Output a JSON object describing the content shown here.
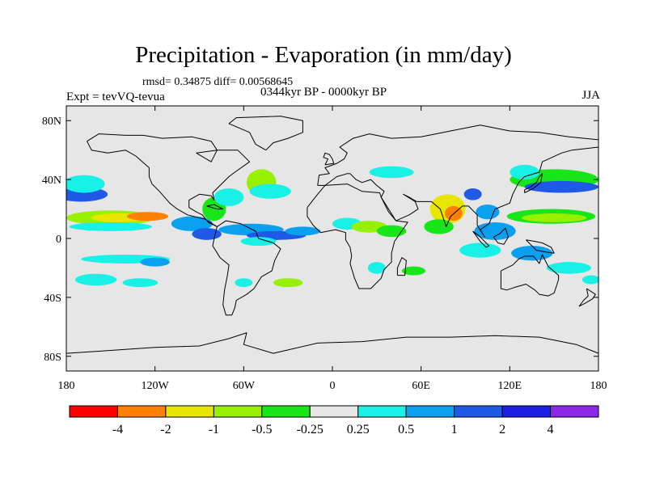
{
  "title": "Precipitation - Evaporation (in mm/day)",
  "stats": "rmsd= 0.34875  diff= 0.00568645",
  "expt": "Expt = tevVQ-tevua",
  "period": "0344kyr BP - 0000kyr BP",
  "season": "JJA",
  "map": {
    "lon_ticks": [
      {
        "value": -180,
        "label": "180"
      },
      {
        "value": -120,
        "label": "120W"
      },
      {
        "value": -60,
        "label": "60W"
      },
      {
        "value": 0,
        "label": "0"
      },
      {
        "value": 60,
        "label": "60E"
      },
      {
        "value": 120,
        "label": "120E"
      },
      {
        "value": 180,
        "label": "180"
      }
    ],
    "lat_ticks": [
      {
        "value": 80,
        "label": "80N"
      },
      {
        "value": 40,
        "label": "40N"
      },
      {
        "value": 0,
        "label": "0"
      },
      {
        "value": -40,
        "label": "40S"
      },
      {
        "value": -80,
        "label": "80S"
      }
    ],
    "lon_range": [
      -180,
      180
    ],
    "lat_range": [
      -90,
      90
    ],
    "background_color": "#e6e6e6"
  },
  "colorbar": {
    "colors": [
      "#ff0000",
      "#ff7f00",
      "#e8e600",
      "#96f000",
      "#19e619",
      "#e6e6e6",
      "#19f0e6",
      "#0aa0f0",
      "#1e5ae6",
      "#1e1ee6",
      "#8c28e6"
    ],
    "labels": [
      "-4",
      "-2",
      "-1",
      "-0.5",
      "-0.25",
      "0.25",
      "0.5",
      "1",
      "2",
      "4"
    ]
  },
  "anomaly_patches": [
    {
      "lon": -170,
      "lat": 30,
      "rx": 18,
      "ry": 5,
      "color": "#1e5ae6"
    },
    {
      "lon": -168,
      "lat": 37,
      "rx": 14,
      "ry": 6,
      "color": "#19f0e6"
    },
    {
      "lon": -150,
      "lat": 14,
      "rx": 30,
      "ry": 5,
      "color": "#96f000"
    },
    {
      "lon": -145,
      "lat": 14,
      "rx": 18,
      "ry": 3,
      "color": "#e8e600"
    },
    {
      "lon": -125,
      "lat": 15,
      "rx": 14,
      "ry": 3,
      "color": "#ff7f00"
    },
    {
      "lon": -150,
      "lat": 8,
      "rx": 28,
      "ry": 3,
      "color": "#19f0e6"
    },
    {
      "lon": -95,
      "lat": 10,
      "rx": 14,
      "ry": 5,
      "color": "#0aa0f0"
    },
    {
      "lon": -85,
      "lat": 3,
      "rx": 10,
      "ry": 4,
      "color": "#1e5ae6"
    },
    {
      "lon": -80,
      "lat": 20,
      "rx": 8,
      "ry": 8,
      "color": "#19e619"
    },
    {
      "lon": -70,
      "lat": 28,
      "rx": 10,
      "ry": 6,
      "color": "#19f0e6"
    },
    {
      "lon": -48,
      "lat": 38,
      "rx": 10,
      "ry": 9,
      "color": "#96f000"
    },
    {
      "lon": -42,
      "lat": 32,
      "rx": 14,
      "ry": 5,
      "color": "#19f0e6"
    },
    {
      "lon": -55,
      "lat": 6,
      "rx": 22,
      "ry": 4,
      "color": "#0aa0f0"
    },
    {
      "lon": -38,
      "lat": 2,
      "rx": 20,
      "ry": 3,
      "color": "#1e5ae6"
    },
    {
      "lon": -20,
      "lat": 5,
      "rx": 12,
      "ry": 3,
      "color": "#0aa0f0"
    },
    {
      "lon": -50,
      "lat": -2,
      "rx": 12,
      "ry": 3,
      "color": "#19f0e6"
    },
    {
      "lon": -140,
      "lat": -14,
      "rx": 30,
      "ry": 3,
      "color": "#19f0e6"
    },
    {
      "lon": -120,
      "lat": -16,
      "rx": 10,
      "ry": 3,
      "color": "#0aa0f0"
    },
    {
      "lon": -160,
      "lat": -28,
      "rx": 14,
      "ry": 4,
      "color": "#19f0e6"
    },
    {
      "lon": -130,
      "lat": -30,
      "rx": 12,
      "ry": 3,
      "color": "#19f0e6"
    },
    {
      "lon": -60,
      "lat": -30,
      "rx": 6,
      "ry": 3,
      "color": "#19f0e6"
    },
    {
      "lon": -30,
      "lat": -30,
      "rx": 10,
      "ry": 3,
      "color": "#96f000"
    },
    {
      "lon": 10,
      "lat": 10,
      "rx": 10,
      "ry": 4,
      "color": "#19f0e6"
    },
    {
      "lon": 25,
      "lat": 8,
      "rx": 12,
      "ry": 4,
      "color": "#96f000"
    },
    {
      "lon": 40,
      "lat": 5,
      "rx": 10,
      "ry": 4,
      "color": "#19e619"
    },
    {
      "lon": 30,
      "lat": -20,
      "rx": 6,
      "ry": 4,
      "color": "#19f0e6"
    },
    {
      "lon": 55,
      "lat": -22,
      "rx": 8,
      "ry": 3,
      "color": "#19e619"
    },
    {
      "lon": 40,
      "lat": 45,
      "rx": 15,
      "ry": 4,
      "color": "#19f0e6"
    },
    {
      "lon": 78,
      "lat": 20,
      "rx": 12,
      "ry": 10,
      "color": "#e8e600"
    },
    {
      "lon": 82,
      "lat": 17,
      "rx": 6,
      "ry": 5,
      "color": "#ff7f00"
    },
    {
      "lon": 72,
      "lat": 8,
      "rx": 10,
      "ry": 5,
      "color": "#19e619"
    },
    {
      "lon": 95,
      "lat": 30,
      "rx": 6,
      "ry": 4,
      "color": "#1e5ae6"
    },
    {
      "lon": 105,
      "lat": 18,
      "rx": 8,
      "ry": 5,
      "color": "#0aa0f0"
    },
    {
      "lon": 110,
      "lat": 5,
      "rx": 14,
      "ry": 6,
      "color": "#0aa0f0"
    },
    {
      "lon": 100,
      "lat": -8,
      "rx": 14,
      "ry": 5,
      "color": "#19f0e6"
    },
    {
      "lon": 150,
      "lat": 40,
      "rx": 30,
      "ry": 7,
      "color": "#19e619"
    },
    {
      "lon": 155,
      "lat": 35,
      "rx": 25,
      "ry": 4,
      "color": "#1e5ae6"
    },
    {
      "lon": 148,
      "lat": 15,
      "rx": 30,
      "ry": 5,
      "color": "#19e619"
    },
    {
      "lon": 150,
      "lat": 14,
      "rx": 22,
      "ry": 3,
      "color": "#96f000"
    },
    {
      "lon": 130,
      "lat": 45,
      "rx": 10,
      "ry": 5,
      "color": "#19f0e6"
    },
    {
      "lon": 135,
      "lat": -10,
      "rx": 14,
      "ry": 5,
      "color": "#0aa0f0"
    },
    {
      "lon": 160,
      "lat": -20,
      "rx": 15,
      "ry": 4,
      "color": "#19f0e6"
    },
    {
      "lon": 175,
      "lat": -28,
      "rx": 6,
      "ry": 3,
      "color": "#19f0e6"
    }
  ],
  "land_outlines": [
    {
      "name": "north-america",
      "points": [
        [
          -166,
          66
        ],
        [
          -158,
          71
        ],
        [
          -140,
          70
        ],
        [
          -128,
          70
        ],
        [
          -115,
          68
        ],
        [
          -95,
          69
        ],
        [
          -82,
          66
        ],
        [
          -78,
          60
        ],
        [
          -92,
          58
        ],
        [
          -82,
          52
        ],
        [
          -78,
          60
        ],
        [
          -64,
          60
        ],
        [
          -56,
          52
        ],
        [
          -66,
          45
        ],
        [
          -70,
          42
        ],
        [
          -76,
          36
        ],
        [
          -81,
          31
        ],
        [
          -80,
          26
        ],
        [
          -82,
          29
        ],
        [
          -90,
          30
        ],
        [
          -97,
          26
        ],
        [
          -97,
          21
        ],
        [
          -92,
          18
        ],
        [
          -88,
          16
        ],
        [
          -84,
          11
        ],
        [
          -78,
          8
        ],
        [
          -86,
          13
        ],
        [
          -98,
          16
        ],
        [
          -105,
          20
        ],
        [
          -110,
          24
        ],
        [
          -117,
          32
        ],
        [
          -122,
          37
        ],
        [
          -124,
          42
        ],
        [
          -124,
          48
        ],
        [
          -133,
          56
        ],
        [
          -140,
          60
        ],
        [
          -152,
          58
        ],
        [
          -163,
          60
        ],
        [
          -166,
          66
        ]
      ]
    },
    {
      "name": "greenland",
      "points": [
        [
          -45,
          60
        ],
        [
          -52,
          64
        ],
        [
          -56,
          72
        ],
        [
          -70,
          78
        ],
        [
          -65,
          82
        ],
        [
          -35,
          83
        ],
        [
          -20,
          80
        ],
        [
          -20,
          72
        ],
        [
          -30,
          68
        ],
        [
          -40,
          65
        ],
        [
          -45,
          60
        ]
      ]
    },
    {
      "name": "south-america",
      "points": [
        [
          -78,
          8
        ],
        [
          -72,
          12
        ],
        [
          -62,
          10
        ],
        [
          -52,
          5
        ],
        [
          -50,
          0
        ],
        [
          -40,
          -3
        ],
        [
          -35,
          -7
        ],
        [
          -39,
          -15
        ],
        [
          -41,
          -22
        ],
        [
          -48,
          -26
        ],
        [
          -53,
          -34
        ],
        [
          -58,
          -38
        ],
        [
          -65,
          -42
        ],
        [
          -66,
          -47
        ],
        [
          -68,
          -52
        ],
        [
          -72,
          -52
        ],
        [
          -74,
          -45
        ],
        [
          -73,
          -35
        ],
        [
          -71,
          -25
        ],
        [
          -70,
          -18
        ],
        [
          -76,
          -13
        ],
        [
          -81,
          -5
        ],
        [
          -80,
          0
        ],
        [
          -78,
          8
        ]
      ]
    },
    {
      "name": "eurasia",
      "points": [
        [
          -10,
          36
        ],
        [
          -9,
          43
        ],
        [
          -2,
          44
        ],
        [
          -5,
          48
        ],
        [
          3,
          51
        ],
        [
          8,
          54
        ],
        [
          10,
          58
        ],
        [
          5,
          62
        ],
        [
          14,
          68
        ],
        [
          25,
          71
        ],
        [
          40,
          68
        ],
        [
          60,
          69
        ],
        [
          80,
          73
        ],
        [
          100,
          77
        ],
        [
          120,
          73
        ],
        [
          140,
          72
        ],
        [
          160,
          69
        ],
        [
          180,
          67
        ],
        [
          180,
          62
        ],
        [
          162,
          60
        ],
        [
          155,
          58
        ],
        [
          142,
          52
        ],
        [
          140,
          45
        ],
        [
          130,
          42
        ],
        [
          126,
          38
        ],
        [
          122,
          30
        ],
        [
          120,
          24
        ],
        [
          110,
          20
        ],
        [
          108,
          15
        ],
        [
          106,
          10
        ],
        [
          100,
          6
        ],
        [
          103,
          1
        ],
        [
          98,
          9
        ],
        [
          98,
          16
        ],
        [
          92,
          22
        ],
        [
          88,
          22
        ],
        [
          80,
          15
        ],
        [
          77,
          8
        ],
        [
          73,
          20
        ],
        [
          67,
          25
        ],
        [
          57,
          25
        ],
        [
          52,
          28
        ],
        [
          48,
          30
        ],
        [
          56,
          25
        ],
        [
          58,
          20
        ],
        [
          52,
          16
        ],
        [
          43,
          12
        ],
        [
          38,
          20
        ],
        [
          33,
          28
        ],
        [
          35,
          32
        ],
        [
          30,
          36
        ],
        [
          26,
          40
        ],
        [
          20,
          38
        ],
        [
          16,
          40
        ],
        [
          12,
          44
        ],
        [
          10,
          44
        ],
        [
          3,
          42
        ],
        [
          -5,
          36
        ],
        [
          -10,
          36
        ]
      ]
    },
    {
      "name": "africa",
      "points": [
        [
          -17,
          21
        ],
        [
          -17,
          15
        ],
        [
          -13,
          9
        ],
        [
          -8,
          4
        ],
        [
          2,
          6
        ],
        [
          9,
          4
        ],
        [
          9,
          -1
        ],
        [
          12,
          -6
        ],
        [
          13,
          -12
        ],
        [
          12,
          -17
        ],
        [
          15,
          -27
        ],
        [
          18,
          -34
        ],
        [
          26,
          -34
        ],
        [
          33,
          -27
        ],
        [
          35,
          -21
        ],
        [
          40,
          -16
        ],
        [
          40,
          -10
        ],
        [
          42,
          -2
        ],
        [
          51,
          11
        ],
        [
          43,
          12
        ],
        [
          38,
          18
        ],
        [
          33,
          28
        ],
        [
          32,
          31
        ],
        [
          20,
          32
        ],
        [
          10,
          37
        ],
        [
          -5,
          36
        ],
        [
          -10,
          30
        ],
        [
          -17,
          21
        ]
      ]
    },
    {
      "name": "madagascar",
      "points": [
        [
          44,
          -25
        ],
        [
          49,
          -25
        ],
        [
          50,
          -15
        ],
        [
          47,
          -13
        ],
        [
          44,
          -20
        ],
        [
          44,
          -25
        ]
      ]
    },
    {
      "name": "australia",
      "points": [
        [
          114,
          -22
        ],
        [
          114,
          -34
        ],
        [
          118,
          -35
        ],
        [
          124,
          -33
        ],
        [
          131,
          -31
        ],
        [
          137,
          -35
        ],
        [
          140,
          -38
        ],
        [
          146,
          -39
        ],
        [
          150,
          -37
        ],
        [
          153,
          -28
        ],
        [
          153,
          -25
        ],
        [
          146,
          -19
        ],
        [
          142,
          -11
        ],
        [
          140,
          -17
        ],
        [
          136,
          -12
        ],
        [
          130,
          -12
        ],
        [
          126,
          -14
        ],
        [
          122,
          -18
        ],
        [
          114,
          -22
        ]
      ]
    },
    {
      "name": "antarctica",
      "points": [
        [
          -180,
          -78
        ],
        [
          -150,
          -76
        ],
        [
          -120,
          -74
        ],
        [
          -90,
          -73
        ],
        [
          -70,
          -68
        ],
        [
          -58,
          -64
        ],
        [
          -60,
          -72
        ],
        [
          -40,
          -78
        ],
        [
          -10,
          -71
        ],
        [
          20,
          -70
        ],
        [
          50,
          -67
        ],
        [
          80,
          -67
        ],
        [
          110,
          -66
        ],
        [
          140,
          -67
        ],
        [
          165,
          -72
        ],
        [
          180,
          -78
        ]
      ]
    },
    {
      "name": "uk",
      "points": [
        [
          -5,
          50
        ],
        [
          1,
          51
        ],
        [
          0,
          54
        ],
        [
          -2,
          57
        ],
        [
          -5,
          58
        ],
        [
          -6,
          55
        ],
        [
          -3,
          54
        ],
        [
          -5,
          50
        ]
      ]
    },
    {
      "name": "japan",
      "points": [
        [
          130,
          31
        ],
        [
          136,
          34
        ],
        [
          141,
          38
        ],
        [
          142,
          44
        ],
        [
          140,
          42
        ],
        [
          138,
          38
        ],
        [
          134,
          35
        ],
        [
          130,
          33
        ],
        [
          130,
          31
        ]
      ]
    },
    {
      "name": "borneo",
      "points": [
        [
          109,
          1
        ],
        [
          112,
          -3
        ],
        [
          116,
          -4
        ],
        [
          119,
          1
        ],
        [
          117,
          7
        ],
        [
          113,
          3
        ],
        [
          109,
          1
        ]
      ]
    },
    {
      "name": "sumatra",
      "points": [
        [
          95,
          5
        ],
        [
          100,
          1
        ],
        [
          106,
          -5
        ],
        [
          104,
          -6
        ],
        [
          100,
          -2
        ],
        [
          95,
          5
        ]
      ]
    },
    {
      "name": "new-guinea",
      "points": [
        [
          131,
          -1
        ],
        [
          137,
          -2
        ],
        [
          142,
          -3
        ],
        [
          148,
          -6
        ],
        [
          150,
          -10
        ],
        [
          143,
          -9
        ],
        [
          138,
          -8
        ],
        [
          131,
          -1
        ]
      ]
    },
    {
      "name": "new-zealand",
      "points": [
        [
          172,
          -34
        ],
        [
          178,
          -38
        ],
        [
          176,
          -41
        ],
        [
          171,
          -44
        ],
        [
          167,
          -46
        ],
        [
          170,
          -42
        ],
        [
          173,
          -39
        ],
        [
          172,
          -34
        ]
      ]
    },
    {
      "name": "cuba",
      "points": [
        [
          -85,
          22
        ],
        [
          -80,
          23
        ],
        [
          -74,
          20
        ],
        [
          -78,
          20
        ],
        [
          -85,
          22
        ]
      ]
    }
  ]
}
